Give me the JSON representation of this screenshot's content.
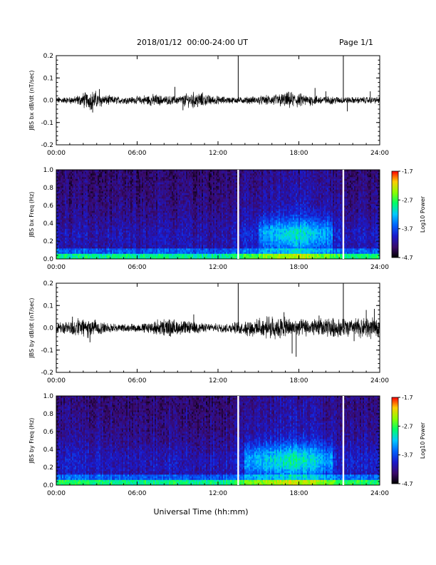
{
  "header": {
    "title": "2018/01/12  00:00-24:00 UT",
    "page_label": "Page 1/1"
  },
  "xlabel": "Universal Time (hh:mm)",
  "chart_data": [
    {
      "type": "line",
      "ylabel": "JBS bx dB/dt (nT/sec)",
      "xlim": [
        0,
        24
      ],
      "ylim": [
        -0.2,
        0.2
      ],
      "x_ticks": [
        "00:00",
        "06:00",
        "12:00",
        "18:00",
        "24:00"
      ],
      "y_ticks": [
        "-0.2",
        "-0.1",
        "0.0",
        "0.1",
        "0.2"
      ],
      "envelope": [
        0.012,
        0.012,
        0.014,
        0.02,
        0.03,
        0.035,
        0.025,
        0.018,
        0.015,
        0.014,
        0.013,
        0.013,
        0.015,
        0.02,
        0.022,
        0.018,
        0.016,
        0.015,
        0.018,
        0.025,
        0.03,
        0.028,
        0.02,
        0.016,
        0.014,
        0.012,
        0.012,
        0.012,
        0.013,
        0.014,
        0.016,
        0.018,
        0.022,
        0.026,
        0.03,
        0.028,
        0.024,
        0.02,
        0.018,
        0.016,
        0.015,
        0.014,
        0.013,
        0.012,
        0.012,
        0.012,
        0.012,
        0.012
      ],
      "spikes": [
        {
          "x": 2.7,
          "y": -0.055
        },
        {
          "x": 3.2,
          "y": 0.05
        },
        {
          "x": 8.8,
          "y": 0.06
        },
        {
          "x": 9.4,
          "y": -0.045
        },
        {
          "x": 19.2,
          "y": 0.055
        },
        {
          "x": 20.0,
          "y": 0.04
        },
        {
          "x": 21.6,
          "y": -0.05
        },
        {
          "x": 23.3,
          "y": 0.04
        }
      ],
      "vertical_lines": [
        13.5,
        21.3
      ]
    },
    {
      "type": "heatmap",
      "ylabel": "JBS bx Freq (Hz)",
      "xlim": [
        0,
        24
      ],
      "ylim": [
        0,
        1.0
      ],
      "x_ticks": [
        "00:00",
        "06:00",
        "12:00",
        "18:00",
        "24:00"
      ],
      "y_ticks": [
        "0.0",
        "0.2",
        "0.4",
        "0.6",
        "0.8",
        "1.0"
      ],
      "colorbar": {
        "label": "Log10 Power",
        "ticks": [
          "-1.7",
          "-2.7",
          "-3.7",
          "-4.7"
        ],
        "range": [
          -4.7,
          -1.7
        ]
      },
      "activity_profile": [
        0.35,
        0.3,
        0.3,
        0.35,
        0.35,
        0.3,
        0.3,
        0.3,
        0.3,
        0.35,
        0.35,
        0.3,
        0.3,
        0.3,
        0.3,
        0.35,
        0.4,
        0.35,
        0.3,
        0.3,
        0.3,
        0.3,
        0.3,
        0.3,
        0.3,
        0.3,
        0.45,
        0.5,
        0.55,
        0.6,
        0.65,
        0.7,
        0.75,
        0.8,
        0.85,
        0.88,
        0.85,
        0.8,
        0.75,
        0.7,
        0.65,
        0.55,
        0.5,
        0.45,
        0.45,
        0.4,
        0.4,
        0.4
      ],
      "gaps": [
        13.5,
        21.3
      ]
    },
    {
      "type": "line",
      "ylabel": "JBS by dB/dt (nT/sec)",
      "xlim": [
        0,
        24
      ],
      "ylim": [
        -0.2,
        0.2
      ],
      "x_ticks": [
        "00:00",
        "06:00",
        "12:00",
        "18:00",
        "24:00"
      ],
      "y_ticks": [
        "-0.2",
        "-0.1",
        "0.0",
        "0.1",
        "0.2"
      ],
      "envelope": [
        0.022,
        0.026,
        0.03,
        0.032,
        0.035,
        0.03,
        0.025,
        0.02,
        0.016,
        0.014,
        0.014,
        0.015,
        0.016,
        0.02,
        0.024,
        0.03,
        0.034,
        0.03,
        0.026,
        0.024,
        0.02,
        0.018,
        0.016,
        0.015,
        0.016,
        0.018,
        0.02,
        0.024,
        0.028,
        0.03,
        0.035,
        0.04,
        0.04,
        0.038,
        0.035,
        0.032,
        0.03,
        0.03,
        0.032,
        0.035,
        0.038,
        0.036,
        0.034,
        0.032,
        0.036,
        0.04,
        0.038,
        0.03
      ],
      "spikes": [
        {
          "x": 1.2,
          "y": 0.05
        },
        {
          "x": 2.5,
          "y": -0.065
        },
        {
          "x": 10.2,
          "y": 0.06
        },
        {
          "x": 16.9,
          "y": 0.07
        },
        {
          "x": 17.5,
          "y": -0.115
        },
        {
          "x": 17.8,
          "y": -0.13
        },
        {
          "x": 19.5,
          "y": 0.055
        },
        {
          "x": 22.1,
          "y": -0.06
        },
        {
          "x": 23.0,
          "y": 0.08
        },
        {
          "x": 23.6,
          "y": 0.085
        }
      ],
      "vertical_lines": [
        13.5,
        21.3
      ]
    },
    {
      "type": "heatmap",
      "ylabel": "JBS by Freq (Hz)",
      "xlim": [
        0,
        24
      ],
      "ylim": [
        0,
        1.0
      ],
      "x_ticks": [
        "00:00",
        "06:00",
        "12:00",
        "18:00",
        "24:00"
      ],
      "y_ticks": [
        "0.0",
        "0.2",
        "0.4",
        "0.6",
        "0.8",
        "1.0"
      ],
      "colorbar": {
        "label": "Log10 Power",
        "ticks": [
          "-1.7",
          "-2.7",
          "-3.7",
          "-4.7"
        ],
        "range": [
          -4.7,
          -1.7
        ]
      },
      "activity_profile": [
        0.45,
        0.45,
        0.45,
        0.45,
        0.4,
        0.4,
        0.4,
        0.4,
        0.4,
        0.4,
        0.35,
        0.35,
        0.35,
        0.35,
        0.4,
        0.4,
        0.45,
        0.45,
        0.4,
        0.35,
        0.35,
        0.35,
        0.35,
        0.35,
        0.35,
        0.4,
        0.5,
        0.6,
        0.65,
        0.7,
        0.75,
        0.8,
        0.85,
        0.9,
        0.95,
        0.95,
        0.9,
        0.85,
        0.8,
        0.72,
        0.65,
        0.6,
        0.5,
        0.45,
        0.45,
        0.45,
        0.45,
        0.45
      ],
      "gaps": [
        13.5,
        21.3
      ]
    }
  ]
}
